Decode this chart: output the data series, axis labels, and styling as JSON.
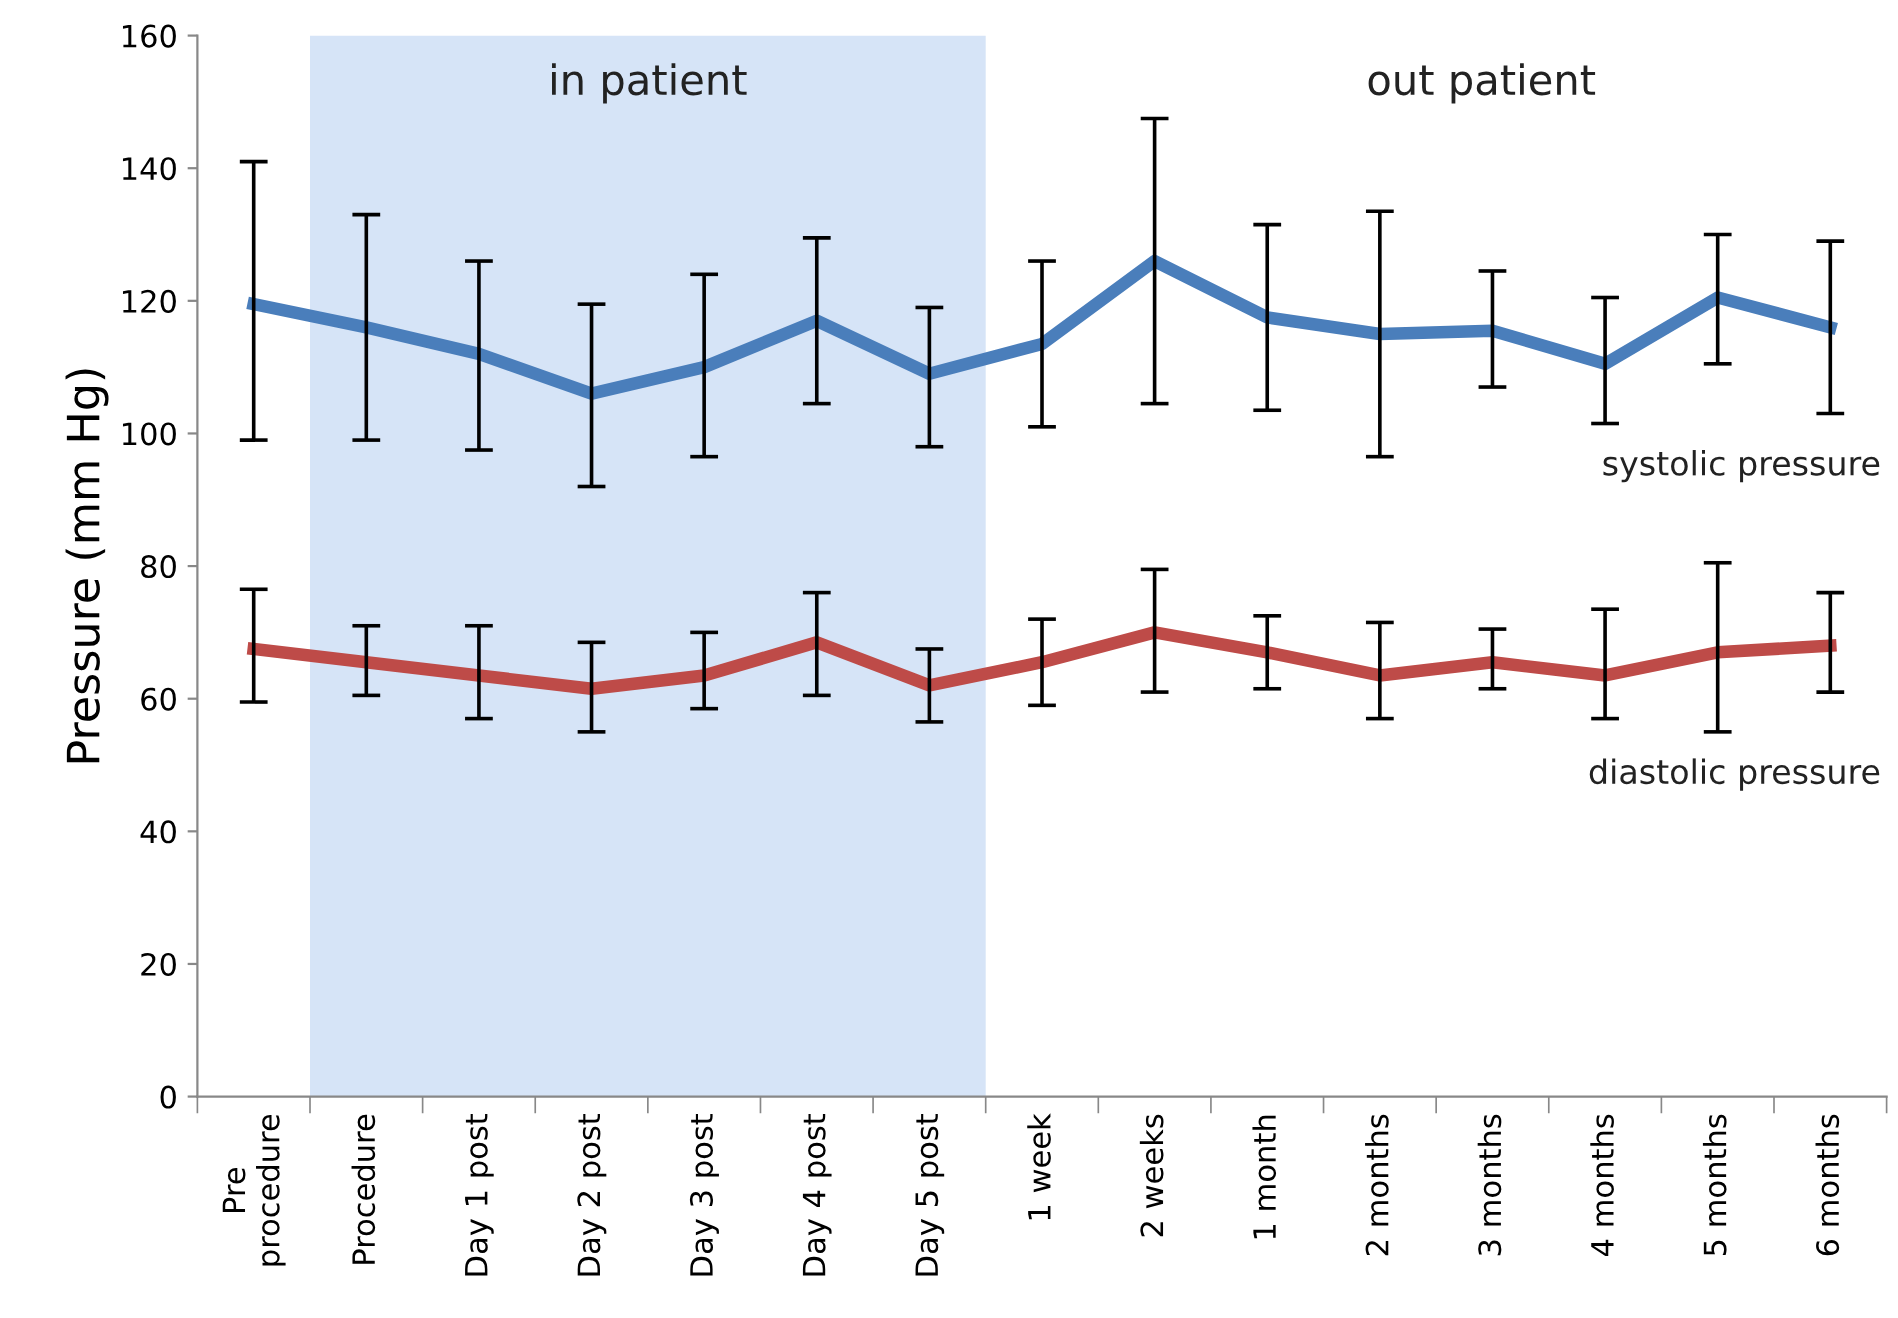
{
  "chart_data": {
    "type": "line",
    "ylabel": "Pressure (mm Hg)",
    "categories": [
      "Pre\nprocedure",
      "Procedure",
      "Day 1 post",
      "Day 2 post",
      "Day 3 post",
      "Day 4 post",
      "Day 5 post",
      "1 week",
      "2 weeks",
      "1 month",
      "2 months",
      "3 months",
      "4 months",
      "5 months",
      "6 months"
    ],
    "series": [
      {
        "name": "systolic pressure",
        "color": "#4a7ebb",
        "values": [
          119.5,
          116,
          112,
          106,
          110,
          117,
          109,
          113.5,
          126,
          117.5,
          115,
          115.5,
          110.5,
          120.5,
          116
        ],
        "errors": [
          [
            99,
            141
          ],
          [
            99,
            133
          ],
          [
            97.5,
            126
          ],
          [
            92,
            119.5
          ],
          [
            96.5,
            124
          ],
          [
            104.5,
            129.5
          ],
          [
            98,
            119
          ],
          [
            101,
            126
          ],
          [
            104.5,
            147.5
          ],
          [
            103.5,
            131.5
          ],
          [
            96.5,
            133.5
          ],
          [
            107,
            124.5
          ],
          [
            101.5,
            120.5
          ],
          [
            110.5,
            130
          ],
          [
            103,
            129
          ]
        ]
      },
      {
        "name": "diastolic pressure",
        "color": "#be4b48",
        "values": [
          67.5,
          65.5,
          63.5,
          61.5,
          63.5,
          68.5,
          62,
          65.5,
          70,
          67,
          63.5,
          65.5,
          63.5,
          67,
          68
        ],
        "errors": [
          [
            59.5,
            76.5
          ],
          [
            60.5,
            71
          ],
          [
            57,
            71
          ],
          [
            55,
            68.5
          ],
          [
            58.5,
            70
          ],
          [
            60.5,
            76
          ],
          [
            56.5,
            67.5
          ],
          [
            59,
            72
          ],
          [
            61,
            79.5
          ],
          [
            61.5,
            72.5
          ],
          [
            57,
            71.5
          ],
          [
            61.5,
            70.5
          ],
          [
            57,
            73.5
          ],
          [
            55,
            80.5
          ],
          [
            61,
            76
          ]
        ]
      }
    ],
    "ylim": [
      0,
      160
    ],
    "yticks": [
      0,
      20,
      40,
      60,
      80,
      100,
      120,
      140,
      160
    ],
    "bands": [
      {
        "axis": "x",
        "from": "Procedure",
        "to": "Day 5 post",
        "label": "in patient",
        "color": "#d6e4f7"
      }
    ],
    "annotations": [
      "out patient"
    ],
    "grid": false,
    "legend": false,
    "marker": "none",
    "line_style": "solid"
  }
}
